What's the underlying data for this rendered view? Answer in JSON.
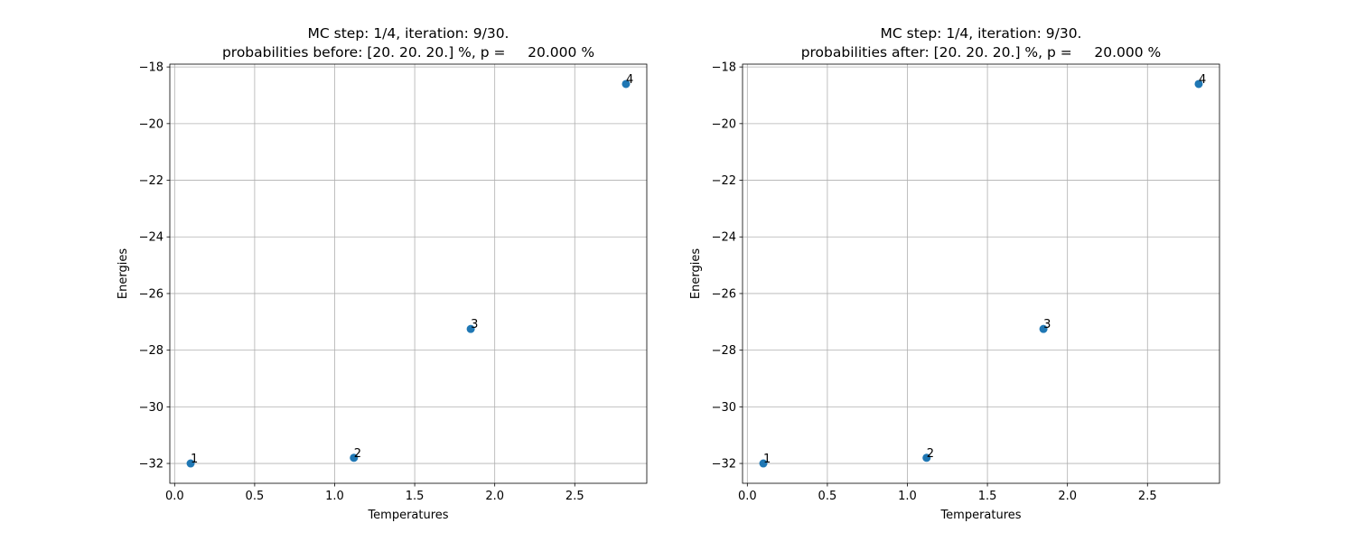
{
  "figure": {
    "background": "#ffffff",
    "marker_color": "#1f77b4",
    "grid_color": "#b0b0b0"
  },
  "chart_data": [
    {
      "type": "scatter",
      "title_lines": [
        "MC step: 1/4, iteration: 9/30.",
        "probabilities before: [20. 20. 20.] %, p =     20.000 %"
      ],
      "xlabel": "Temperatures",
      "ylabel": "Energies",
      "xlim": [
        -0.03,
        2.95
      ],
      "ylim": [
        -32.7,
        -17.9
      ],
      "xticks": [
        0.0,
        0.5,
        1.0,
        1.5,
        2.0,
        2.5
      ],
      "xtick_labels": [
        "0.0",
        "0.5",
        "1.0",
        "1.5",
        "2.0",
        "2.5"
      ],
      "yticks": [
        -32,
        -30,
        -28,
        -26,
        -24,
        -22,
        -20,
        -18
      ],
      "ytick_labels": [
        "−32",
        "−30",
        "−28",
        "−26",
        "−24",
        "−22",
        "−20",
        "−18"
      ],
      "grid": true,
      "points": [
        {
          "label": "1",
          "x": 0.1,
          "y": -32.0
        },
        {
          "label": "2",
          "x": 1.12,
          "y": -31.8
        },
        {
          "label": "3",
          "x": 1.85,
          "y": -27.25
        },
        {
          "label": "4",
          "x": 2.82,
          "y": -18.6
        }
      ]
    },
    {
      "type": "scatter",
      "title_lines": [
        "MC step: 1/4, iteration: 9/30.",
        "probabilities after: [20. 20. 20.] %, p =     20.000 %"
      ],
      "xlabel": "Temperatures",
      "ylabel": "Energies",
      "xlim": [
        -0.03,
        2.95
      ],
      "ylim": [
        -32.7,
        -17.9
      ],
      "xticks": [
        0.0,
        0.5,
        1.0,
        1.5,
        2.0,
        2.5
      ],
      "xtick_labels": [
        "0.0",
        "0.5",
        "1.0",
        "1.5",
        "2.0",
        "2.5"
      ],
      "yticks": [
        -32,
        -30,
        -28,
        -26,
        -24,
        -22,
        -20,
        -18
      ],
      "ytick_labels": [
        "−32",
        "−30",
        "−28",
        "−26",
        "−24",
        "−22",
        "−20",
        "−18"
      ],
      "grid": true,
      "points": [
        {
          "label": "1",
          "x": 0.1,
          "y": -32.0
        },
        {
          "label": "2",
          "x": 1.12,
          "y": -31.8
        },
        {
          "label": "3",
          "x": 1.85,
          "y": -27.25
        },
        {
          "label": "4",
          "x": 2.82,
          "y": -18.6
        }
      ]
    }
  ]
}
